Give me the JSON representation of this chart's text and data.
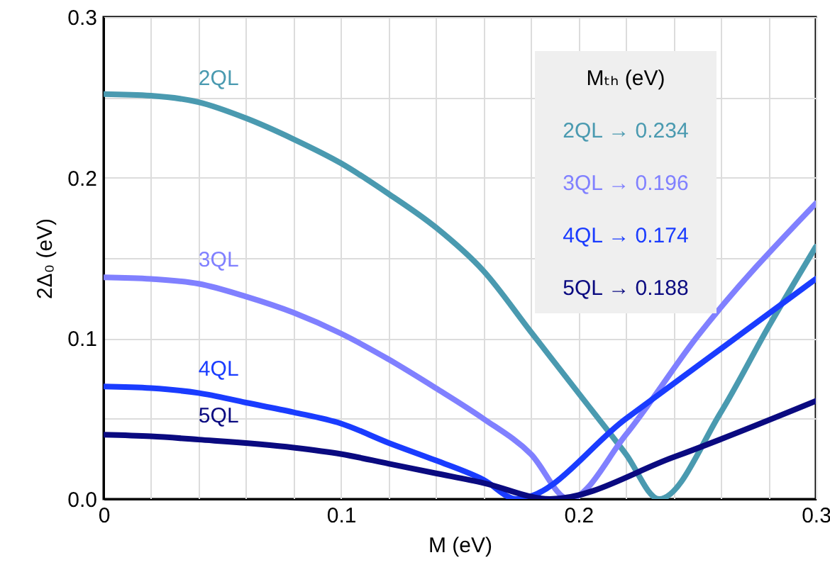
{
  "chart_data": {
    "type": "line",
    "xlabel": "M (eV)",
    "ylabel": "2Δ₀ (eV)",
    "xlim": [
      0,
      0.3
    ],
    "ylim": [
      0,
      0.3
    ],
    "xticks": [
      0,
      {
        "value": 0.02,
        "label": null
      },
      {
        "value": 0.04,
        "label": null
      },
      {
        "value": 0.06,
        "label": null
      },
      {
        "value": 0.08,
        "label": null
      },
      0.1,
      {
        "value": 0.12,
        "label": null
      },
      {
        "value": 0.14,
        "label": null
      },
      {
        "value": 0.16,
        "label": null
      },
      {
        "value": 0.18,
        "label": null
      },
      0.2,
      {
        "value": 0.22,
        "label": null
      },
      {
        "value": 0.24,
        "label": null
      },
      {
        "value": 0.26,
        "label": null
      },
      {
        "value": 0.28,
        "label": null
      },
      0.3
    ],
    "yticks": [
      {
        "value": 0,
        "label": "0.0"
      },
      {
        "value": 0.05,
        "label": null
      },
      {
        "value": 0.1,
        "label": "0.1"
      },
      {
        "value": 0.15,
        "label": null
      },
      {
        "value": 0.2,
        "label": "0.2"
      },
      {
        "value": 0.25,
        "label": null
      },
      {
        "value": 0.3,
        "label": "0.3"
      }
    ],
    "grid": true,
    "marker": "none",
    "line_style": "solid",
    "series": [
      {
        "name": "2QL",
        "color": "#4a9ab0",
        "x": [
          0,
          0.02,
          0.04,
          0.06,
          0.08,
          0.1,
          0.12,
          0.14,
          0.16,
          0.18,
          0.2,
          0.22,
          0.234,
          0.26,
          0.28,
          0.3
        ],
        "values": [
          0.252,
          0.251,
          0.247,
          0.237,
          0.224,
          0.209,
          0.19,
          0.169,
          0.142,
          0.104,
          0.066,
          0.028,
          0,
          0.054,
          0.107,
          0.157
        ]
      },
      {
        "name": "3QL",
        "color": "#8080ff",
        "x": [
          0,
          0.02,
          0.04,
          0.06,
          0.08,
          0.1,
          0.12,
          0.14,
          0.16,
          0.18,
          0.196,
          0.22,
          0.25,
          0.3
        ],
        "values": [
          0.138,
          0.137,
          0.134,
          0.126,
          0.116,
          0.103,
          0.087,
          0.069,
          0.05,
          0.028,
          0,
          0.04,
          0.101,
          0.184
        ]
      },
      {
        "name": "4QL",
        "color": "#1a3cff",
        "x": [
          0,
          0.02,
          0.04,
          0.06,
          0.08,
          0.1,
          0.12,
          0.14,
          0.16,
          0.174,
          0.22,
          0.3
        ],
        "values": [
          0.07,
          0.069,
          0.066,
          0.06,
          0.054,
          0.047,
          0.035,
          0.024,
          0.012,
          0,
          0.05,
          0.137
        ]
      },
      {
        "name": "5QL",
        "color": "#0a0a80",
        "x": [
          0,
          0.02,
          0.04,
          0.08,
          0.1,
          0.12,
          0.14,
          0.16,
          0.188,
          0.24,
          0.3
        ],
        "values": [
          0.04,
          0.039,
          0.037,
          0.032,
          0.028,
          0.022,
          0.016,
          0.01,
          0,
          0.026,
          0.061
        ]
      }
    ],
    "annotations": [
      "Mₜₕ (eV)",
      "2QL → 0.234",
      "3QL → 0.196",
      "4QL → 0.174",
      "5QL → 0.188"
    ]
  }
}
